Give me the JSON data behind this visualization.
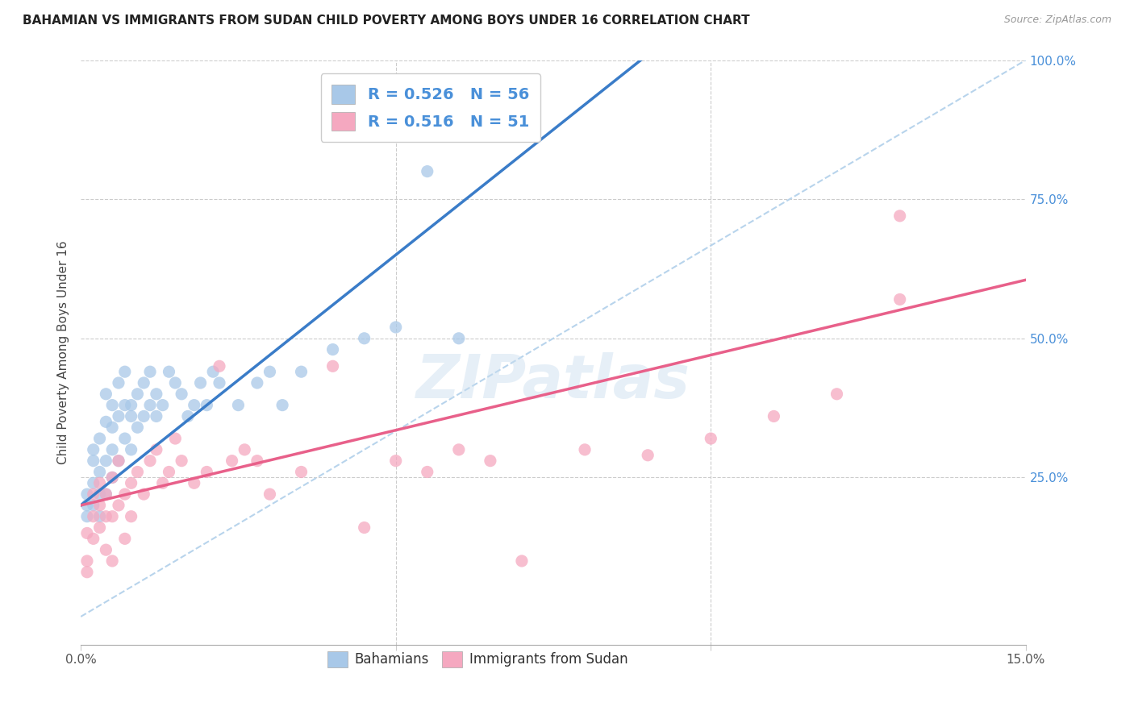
{
  "title": "BAHAMIAN VS IMMIGRANTS FROM SUDAN CHILD POVERTY AMONG BOYS UNDER 16 CORRELATION CHART",
  "source": "Source: ZipAtlas.com",
  "ylabel": "Child Poverty Among Boys Under 16",
  "xlim": [
    0.0,
    0.15
  ],
  "ylim": [
    -0.05,
    1.0
  ],
  "blue_R": 0.526,
  "blue_N": 56,
  "pink_R": 0.516,
  "pink_N": 51,
  "blue_color": "#A8C8E8",
  "pink_color": "#F5A8C0",
  "blue_line_color": "#3A7CC8",
  "pink_line_color": "#E8608A",
  "diagonal_color": "#B8D4EC",
  "watermark": "ZIPatlas",
  "legend_labels": [
    "Bahamians",
    "Immigrants from Sudan"
  ],
  "blue_scatter_x": [
    0.001,
    0.001,
    0.001,
    0.002,
    0.002,
    0.002,
    0.002,
    0.003,
    0.003,
    0.003,
    0.003,
    0.004,
    0.004,
    0.004,
    0.004,
    0.005,
    0.005,
    0.005,
    0.005,
    0.006,
    0.006,
    0.006,
    0.007,
    0.007,
    0.007,
    0.008,
    0.008,
    0.008,
    0.009,
    0.009,
    0.01,
    0.01,
    0.011,
    0.011,
    0.012,
    0.012,
    0.013,
    0.014,
    0.015,
    0.016,
    0.017,
    0.018,
    0.019,
    0.02,
    0.021,
    0.022,
    0.025,
    0.028,
    0.03,
    0.032,
    0.035,
    0.04,
    0.045,
    0.05,
    0.055,
    0.06
  ],
  "blue_scatter_y": [
    0.2,
    0.22,
    0.18,
    0.28,
    0.24,
    0.3,
    0.2,
    0.32,
    0.26,
    0.22,
    0.18,
    0.35,
    0.28,
    0.4,
    0.22,
    0.38,
    0.3,
    0.25,
    0.34,
    0.36,
    0.42,
    0.28,
    0.38,
    0.32,
    0.44,
    0.36,
    0.38,
    0.3,
    0.4,
    0.34,
    0.36,
    0.42,
    0.38,
    0.44,
    0.4,
    0.36,
    0.38,
    0.44,
    0.42,
    0.4,
    0.36,
    0.38,
    0.42,
    0.38,
    0.44,
    0.42,
    0.38,
    0.42,
    0.44,
    0.38,
    0.44,
    0.48,
    0.5,
    0.52,
    0.8,
    0.5
  ],
  "pink_scatter_x": [
    0.001,
    0.001,
    0.001,
    0.002,
    0.002,
    0.002,
    0.003,
    0.003,
    0.003,
    0.004,
    0.004,
    0.004,
    0.005,
    0.005,
    0.005,
    0.006,
    0.006,
    0.007,
    0.007,
    0.008,
    0.008,
    0.009,
    0.01,
    0.011,
    0.012,
    0.013,
    0.014,
    0.015,
    0.016,
    0.018,
    0.02,
    0.022,
    0.024,
    0.026,
    0.028,
    0.03,
    0.035,
    0.04,
    0.045,
    0.05,
    0.055,
    0.06,
    0.065,
    0.07,
    0.08,
    0.09,
    0.1,
    0.11,
    0.12,
    0.13,
    0.13
  ],
  "pink_scatter_y": [
    0.1,
    0.15,
    0.08,
    0.18,
    0.22,
    0.14,
    0.2,
    0.16,
    0.24,
    0.18,
    0.22,
    0.12,
    0.25,
    0.18,
    0.1,
    0.2,
    0.28,
    0.22,
    0.14,
    0.24,
    0.18,
    0.26,
    0.22,
    0.28,
    0.3,
    0.24,
    0.26,
    0.32,
    0.28,
    0.24,
    0.26,
    0.45,
    0.28,
    0.3,
    0.28,
    0.22,
    0.26,
    0.45,
    0.16,
    0.28,
    0.26,
    0.3,
    0.28,
    0.1,
    0.3,
    0.29,
    0.32,
    0.36,
    0.4,
    0.57,
    0.72
  ]
}
